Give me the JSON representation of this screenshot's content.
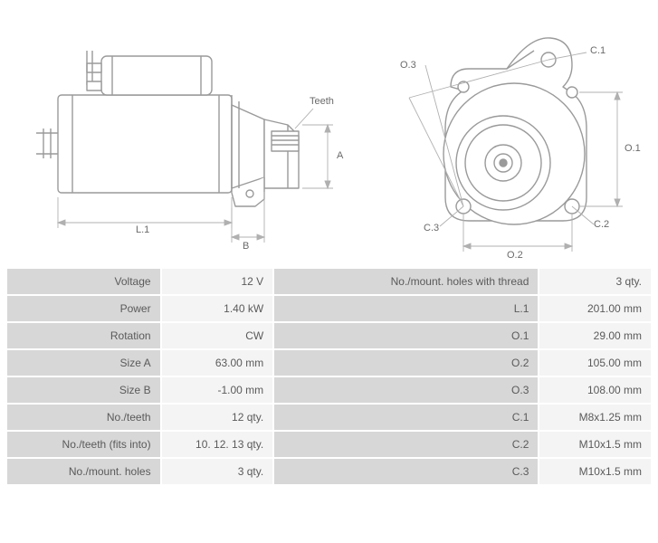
{
  "diagram": {
    "labels": {
      "teeth": "Teeth",
      "A": "A",
      "B": "B",
      "L1": "L.1",
      "O1": "O.1",
      "O2": "O.2",
      "O3": "O.3",
      "C1": "C.1",
      "C2": "C.2",
      "C3": "C.3"
    },
    "stroke_color": "#9a9a9a",
    "thin_stroke": "#b0b0b0",
    "fill_color": "#ffffff",
    "stroke_width_main": 1.4,
    "stroke_width_dim": 0.9,
    "label_color": "#6a6a6a",
    "label_fontsize": 11
  },
  "specs": {
    "left": [
      {
        "label": "Voltage",
        "value": "12 V"
      },
      {
        "label": "Power",
        "value": "1.40 kW"
      },
      {
        "label": "Rotation",
        "value": "CW"
      },
      {
        "label": "Size A",
        "value": "63.00 mm"
      },
      {
        "label": "Size B",
        "value": "-1.00 mm"
      },
      {
        "label": "No./teeth",
        "value": "12 qty."
      },
      {
        "label": "No./teeth (fits into)",
        "value": "10. 12. 13 qty."
      },
      {
        "label": "No./mount. holes",
        "value": "3 qty."
      }
    ],
    "right": [
      {
        "label": "No./mount. holes with thread",
        "value": "3 qty."
      },
      {
        "label": "L.1",
        "value": "201.00 mm"
      },
      {
        "label": "O.1",
        "value": "29.00 mm"
      },
      {
        "label": "O.2",
        "value": "105.00 mm"
      },
      {
        "label": "O.3",
        "value": "108.00 mm"
      },
      {
        "label": "C.1",
        "value": "M8x1.25 mm"
      },
      {
        "label": "C.2",
        "value": "M10x1.5 mm"
      },
      {
        "label": "C.3",
        "value": "M10x1.5 mm"
      }
    ]
  },
  "colors": {
    "table_header_bg": "#d7d7d7",
    "table_cell_bg": "#f4f4f4",
    "text_color": "#5a5a5a",
    "background": "#ffffff"
  },
  "typography": {
    "font_family": "Verdana, Geneva, sans-serif",
    "table_fontsize": 12
  }
}
